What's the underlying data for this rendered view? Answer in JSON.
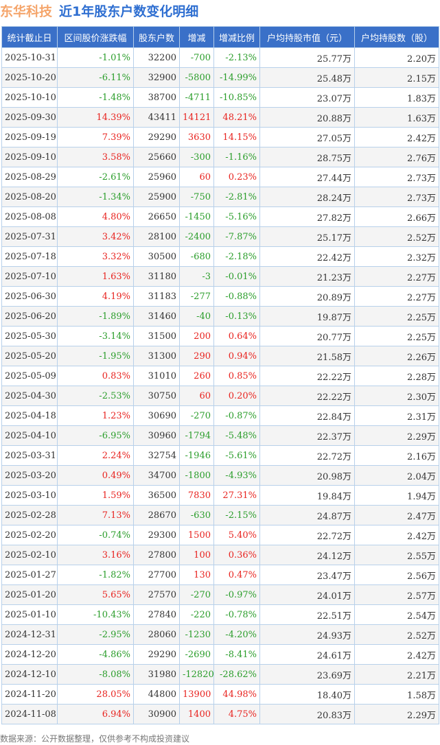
{
  "header": {
    "company": "东华科技",
    "subtitle": "近1年股东户数变化明细"
  },
  "table": {
    "columns": [
      "统计截止日",
      "区间股价涨跌幅",
      "股东户数",
      "增减",
      "增减比例",
      "户均持股市值（元）",
      "户均持股数（股）"
    ],
    "rows": [
      [
        "2025-10-31",
        "-1.01%",
        "32200",
        "-700",
        "-2.13%",
        "25.77万",
        "2.20万"
      ],
      [
        "2025-10-20",
        "-6.11%",
        "32900",
        "-5800",
        "-14.99%",
        "25.48万",
        "2.15万"
      ],
      [
        "2025-10-10",
        "-1.48%",
        "38700",
        "-4711",
        "-10.85%",
        "23.07万",
        "1.83万"
      ],
      [
        "2025-09-30",
        "14.39%",
        "43411",
        "14121",
        "48.21%",
        "20.88万",
        "1.63万"
      ],
      [
        "2025-09-19",
        "7.39%",
        "29290",
        "3630",
        "14.15%",
        "27.05万",
        "2.42万"
      ],
      [
        "2025-09-10",
        "3.58%",
        "25660",
        "-300",
        "-1.16%",
        "28.75万",
        "2.76万"
      ],
      [
        "2025-08-29",
        "-2.61%",
        "25960",
        "60",
        "0.23%",
        "27.44万",
        "2.73万"
      ],
      [
        "2025-08-20",
        "-1.34%",
        "25900",
        "-750",
        "-2.81%",
        "28.24万",
        "2.73万"
      ],
      [
        "2025-08-08",
        "4.80%",
        "26650",
        "-1450",
        "-5.16%",
        "27.82万",
        "2.66万"
      ],
      [
        "2025-07-31",
        "3.42%",
        "28100",
        "-2400",
        "-7.87%",
        "25.17万",
        "2.52万"
      ],
      [
        "2025-07-18",
        "3.32%",
        "30500",
        "-680",
        "-2.18%",
        "22.42万",
        "2.32万"
      ],
      [
        "2025-07-10",
        "1.63%",
        "31180",
        "-3",
        "-0.01%",
        "21.23万",
        "2.27万"
      ],
      [
        "2025-06-30",
        "4.19%",
        "31183",
        "-277",
        "-0.88%",
        "20.89万",
        "2.27万"
      ],
      [
        "2025-06-20",
        "-1.89%",
        "31460",
        "-40",
        "-0.13%",
        "19.87万",
        "2.25万"
      ],
      [
        "2025-05-30",
        "-3.14%",
        "31500",
        "200",
        "0.64%",
        "20.77万",
        "2.25万"
      ],
      [
        "2025-05-20",
        "-1.95%",
        "31300",
        "290",
        "0.94%",
        "21.58万",
        "2.26万"
      ],
      [
        "2025-05-09",
        "0.83%",
        "31010",
        "260",
        "0.85%",
        "22.22万",
        "2.28万"
      ],
      [
        "2025-04-30",
        "-2.53%",
        "30750",
        "60",
        "0.20%",
        "22.22万",
        "2.30万"
      ],
      [
        "2025-04-18",
        "1.23%",
        "30690",
        "-270",
        "-0.87%",
        "22.84万",
        "2.31万"
      ],
      [
        "2025-04-10",
        "-6.95%",
        "30960",
        "-1794",
        "-5.48%",
        "22.37万",
        "2.29万"
      ],
      [
        "2025-03-31",
        "2.24%",
        "32754",
        "-1946",
        "-5.61%",
        "22.72万",
        "2.16万"
      ],
      [
        "2025-03-20",
        "0.49%",
        "34700",
        "-1800",
        "-4.93%",
        "20.98万",
        "2.04万"
      ],
      [
        "2025-03-10",
        "1.59%",
        "36500",
        "7830",
        "27.31%",
        "19.84万",
        "1.94万"
      ],
      [
        "2025-02-28",
        "7.13%",
        "28670",
        "-630",
        "-2.15%",
        "24.87万",
        "2.47万"
      ],
      [
        "2025-02-20",
        "-0.74%",
        "29300",
        "1500",
        "5.40%",
        "22.72万",
        "2.42万"
      ],
      [
        "2025-02-10",
        "3.16%",
        "27800",
        "100",
        "0.36%",
        "24.12万",
        "2.55万"
      ],
      [
        "2025-01-27",
        "-1.82%",
        "27700",
        "130",
        "0.47%",
        "23.47万",
        "2.56万"
      ],
      [
        "2025-01-20",
        "5.65%",
        "27570",
        "-270",
        "-0.97%",
        "24.01万",
        "2.57万"
      ],
      [
        "2025-01-10",
        "-10.43%",
        "27840",
        "-220",
        "-0.78%",
        "22.51万",
        "2.54万"
      ],
      [
        "2024-12-31",
        "-2.95%",
        "28060",
        "-1230",
        "-4.20%",
        "24.93万",
        "2.52万"
      ],
      [
        "2024-12-20",
        "-4.86%",
        "29290",
        "-2690",
        "-8.41%",
        "24.61万",
        "2.42万"
      ],
      [
        "2024-12-10",
        "-8.08%",
        "31980",
        "-12820",
        "-28.62%",
        "23.69万",
        "2.21万"
      ],
      [
        "2024-11-20",
        "28.05%",
        "44800",
        "13900",
        "44.98%",
        "18.40万",
        "1.58万"
      ],
      [
        "2024-11-08",
        "6.94%",
        "30900",
        "1400",
        "4.75%",
        "20.83万",
        "2.29万"
      ]
    ]
  },
  "footer": {
    "source": "数据来源：公开数据整理，仅供参考不构成投资建议"
  },
  "colors": {
    "header_bg": "#3a70c8",
    "up": "#e8231f",
    "down": "#2a9d2a",
    "company": "#f5a56b",
    "subtitle": "#2f6fd1"
  }
}
